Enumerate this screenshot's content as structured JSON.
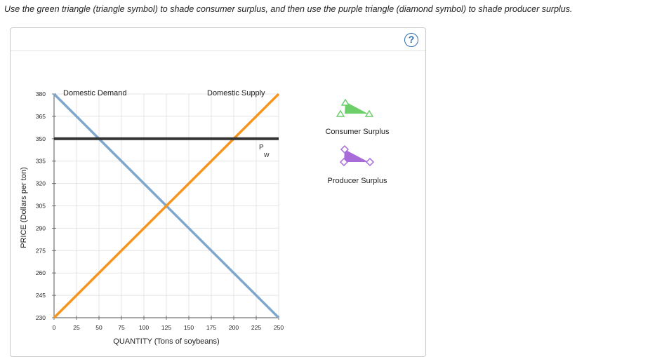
{
  "instructions": "Use the green triangle (triangle symbol) to shade consumer surplus, and then use the purple triangle (diamond symbol) to shade producer surplus.",
  "help": {
    "label": "?"
  },
  "colors": {
    "demand": "#7fa7cc",
    "supply": "#f7941d",
    "world_price": "#333333",
    "consumer_tool": "#6dcf6a",
    "producer_tool": "#a96bd8",
    "help": "#2f6fb0"
  },
  "chart_data": {
    "type": "line",
    "xlabel": "QUANTITY (Tons of soybeans)",
    "ylabel": "PRICE (Dollars per ton)",
    "xlim": [
      0,
      250
    ],
    "ylim": [
      230,
      380
    ],
    "x_ticks": [
      0,
      25,
      50,
      75,
      100,
      125,
      150,
      175,
      200,
      225,
      250
    ],
    "y_ticks": [
      230,
      245,
      260,
      275,
      290,
      305,
      320,
      335,
      350,
      365,
      380
    ],
    "grid": true,
    "series": [
      {
        "name": "Domestic Demand",
        "points": [
          [
            0,
            380
          ],
          [
            250,
            230
          ]
        ]
      },
      {
        "name": "Domestic Supply",
        "points": [
          [
            0,
            230
          ],
          [
            250,
            380
          ]
        ]
      },
      {
        "name": "Pw",
        "points": [
          [
            0,
            350
          ],
          [
            250,
            350
          ]
        ]
      }
    ],
    "world_price_label": {
      "main": "P",
      "sub": "W"
    }
  },
  "tools": [
    {
      "label": "Consumer Surplus",
      "symbol": "triangle"
    },
    {
      "label": "Producer Surplus",
      "symbol": "diamond"
    }
  ]
}
